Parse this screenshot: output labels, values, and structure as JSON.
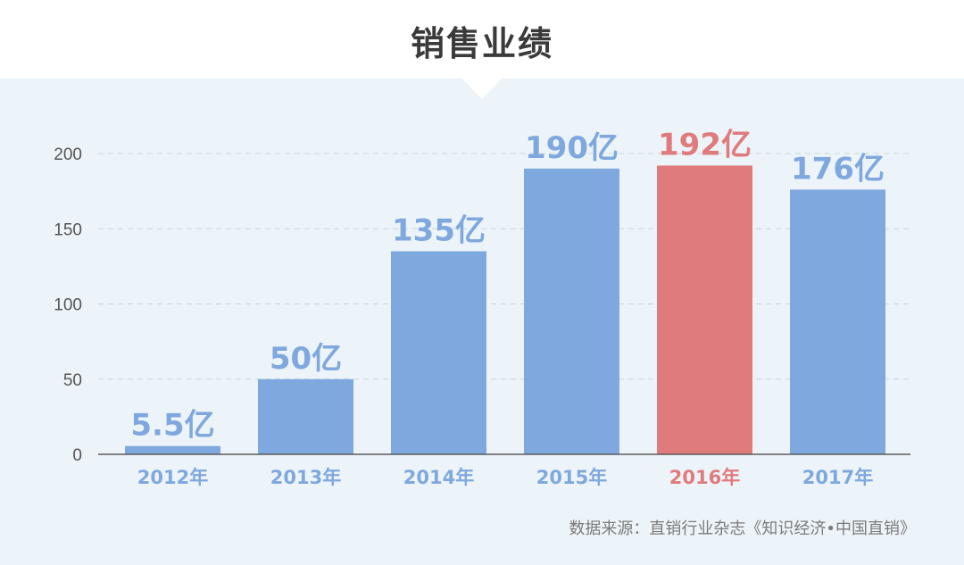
{
  "title": "销售业绩",
  "source": "数据来源：直销行业杂志《知识经济•中国直销》",
  "colors": {
    "bar": "#7ea8de",
    "highlight": "#e07b7d",
    "label": "#7ea8de",
    "highlight_label": "#e07b7d",
    "axis": "#555555",
    "grid": "#c8d3dd"
  },
  "chart_data": {
    "type": "bar",
    "categories": [
      "2012年",
      "2013年",
      "2014年",
      "2015年",
      "2016年",
      "2017年"
    ],
    "values": [
      5.5,
      50,
      135,
      190,
      192,
      176
    ],
    "data_labels": [
      "5.5亿",
      "50亿",
      "135亿",
      "190亿",
      "192亿",
      "176亿"
    ],
    "highlight_index": 4,
    "yticks": [
      0,
      50,
      100,
      150,
      200
    ],
    "ylim": [
      0,
      200
    ],
    "grid": true,
    "grid_style": "dashed",
    "title": "销售业绩",
    "xlabel": "",
    "ylabel": ""
  }
}
